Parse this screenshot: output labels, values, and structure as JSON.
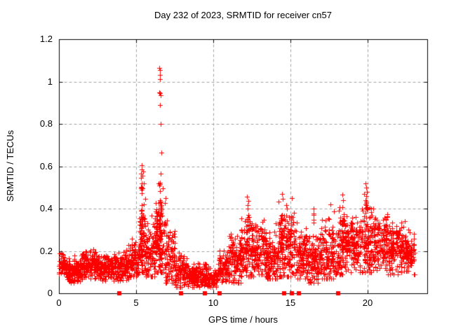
{
  "chart_data": {
    "type": "scatter",
    "title": "Day 232 of 2023, SRMTID for receiver cn57",
    "xlabel": "GPS time / hours",
    "ylabel": "SRMTID / TECUs",
    "xlim": [
      0,
      23.86
    ],
    "ylim": [
      0,
      1.2
    ],
    "xticks": [
      0,
      5,
      10,
      15,
      20
    ],
    "xtick_labels": [
      "0",
      "5",
      "10",
      "15",
      "20"
    ],
    "yticks": [
      0,
      0.2,
      0.4,
      0.6,
      0.8,
      1,
      1.2
    ],
    "ytick_labels": [
      "0",
      "0.2",
      "0.4",
      "0.6",
      "0.8",
      "1",
      "1.2"
    ],
    "grid": true,
    "grid_color": "#a0a0a0",
    "axis_color": "#000000",
    "marker": {
      "shape": "plus",
      "color": "#ff0000",
      "size": 7
    },
    "flag_marker": {
      "shape": "square",
      "color": "#ff0000",
      "size": 6
    },
    "series_name": "SRMTID",
    "band_profile": [
      {
        "t0": 0.0,
        "t1": 0.5,
        "n": 75,
        "ymin": 0.08,
        "ymax": 0.2,
        "c": 0.13
      },
      {
        "t0": 0.5,
        "t1": 1.5,
        "n": 135,
        "ymin": 0.05,
        "ymax": 0.18,
        "c": 0.11
      },
      {
        "t0": 1.5,
        "t1": 2.5,
        "n": 135,
        "ymin": 0.07,
        "ymax": 0.21,
        "c": 0.13
      },
      {
        "t0": 2.5,
        "t1": 3.5,
        "n": 135,
        "ymin": 0.06,
        "ymax": 0.19,
        "c": 0.12
      },
      {
        "t0": 3.5,
        "t1": 4.5,
        "n": 135,
        "ymin": 0.06,
        "ymax": 0.22,
        "c": 0.12
      },
      {
        "t0": 4.5,
        "t1": 5.2,
        "n": 100,
        "ymin": 0.08,
        "ymax": 0.26,
        "c": 0.15
      },
      {
        "t0": 5.2,
        "t1": 5.6,
        "n": 70,
        "ymin": 0.1,
        "ymax": 0.5,
        "c": 0.22
      },
      {
        "t0": 5.6,
        "t1": 6.2,
        "n": 85,
        "ymin": 0.08,
        "ymax": 0.42,
        "c": 0.18
      },
      {
        "t0": 6.2,
        "t1": 6.9,
        "n": 115,
        "ymin": 0.1,
        "ymax": 0.55,
        "c": 0.25
      },
      {
        "t0": 6.9,
        "t1": 7.5,
        "n": 85,
        "ymin": 0.05,
        "ymax": 0.38,
        "c": 0.17
      },
      {
        "t0": 7.5,
        "t1": 8.3,
        "n": 105,
        "ymin": 0.03,
        "ymax": 0.2,
        "c": 0.1
      },
      {
        "t0": 8.3,
        "t1": 9.7,
        "n": 170,
        "ymin": 0.03,
        "ymax": 0.15,
        "c": 0.08
      },
      {
        "t0": 9.7,
        "t1": 10.3,
        "n": 60,
        "ymin": 0.03,
        "ymax": 0.13,
        "c": 0.07
      },
      {
        "t0": 10.3,
        "t1": 11.0,
        "n": 95,
        "ymin": 0.05,
        "ymax": 0.22,
        "c": 0.12
      },
      {
        "t0": 11.0,
        "t1": 11.8,
        "n": 115,
        "ymin": 0.05,
        "ymax": 0.32,
        "c": 0.15
      },
      {
        "t0": 11.8,
        "t1": 12.6,
        "n": 115,
        "ymin": 0.08,
        "ymax": 0.42,
        "c": 0.2
      },
      {
        "t0": 12.6,
        "t1": 13.4,
        "n": 115,
        "ymin": 0.09,
        "ymax": 0.38,
        "c": 0.21
      },
      {
        "t0": 13.4,
        "t1": 14.2,
        "n": 115,
        "ymin": 0.07,
        "ymax": 0.33,
        "c": 0.17
      },
      {
        "t0": 14.2,
        "t1": 15.3,
        "n": 160,
        "ymin": 0.08,
        "ymax": 0.44,
        "c": 0.21
      },
      {
        "t0": 15.3,
        "t1": 16.2,
        "n": 125,
        "ymin": 0.07,
        "ymax": 0.34,
        "c": 0.18
      },
      {
        "t0": 16.2,
        "t1": 17.0,
        "n": 115,
        "ymin": 0.05,
        "ymax": 0.3,
        "c": 0.16
      },
      {
        "t0": 17.0,
        "t1": 17.8,
        "n": 115,
        "ymin": 0.07,
        "ymax": 0.4,
        "c": 0.19
      },
      {
        "t0": 17.8,
        "t1": 18.6,
        "n": 115,
        "ymin": 0.09,
        "ymax": 0.44,
        "c": 0.21
      },
      {
        "t0": 18.6,
        "t1": 19.5,
        "n": 125,
        "ymin": 0.1,
        "ymax": 0.37,
        "c": 0.22
      },
      {
        "t0": 19.5,
        "t1": 20.3,
        "n": 115,
        "ymin": 0.1,
        "ymax": 0.48,
        "c": 0.24
      },
      {
        "t0": 20.3,
        "t1": 21.3,
        "n": 145,
        "ymin": 0.11,
        "ymax": 0.4,
        "c": 0.24
      },
      {
        "t0": 21.3,
        "t1": 22.4,
        "n": 155,
        "ymin": 0.09,
        "ymax": 0.35,
        "c": 0.21
      },
      {
        "t0": 22.4,
        "t1": 23.05,
        "n": 95,
        "ymin": 0.09,
        "ymax": 0.3,
        "c": 0.18
      }
    ],
    "spike_columns": [
      {
        "x": 5.35,
        "jx": 0.06,
        "n": 25,
        "y0": 0.12,
        "y1": 0.52
      },
      {
        "x": 6.55,
        "jx": 0.08,
        "n": 35,
        "y0": 0.12,
        "y1": 0.56
      },
      {
        "x": 6.3,
        "jx": 0.05,
        "n": 15,
        "y0": 0.1,
        "y1": 0.4
      },
      {
        "x": 12.2,
        "jx": 0.05,
        "n": 12,
        "y0": 0.15,
        "y1": 0.42
      },
      {
        "x": 14.45,
        "jx": 0.05,
        "n": 12,
        "y0": 0.15,
        "y1": 0.43
      },
      {
        "x": 16.5,
        "jx": 0.04,
        "n": 8,
        "y0": 0.15,
        "y1": 0.38
      },
      {
        "x": 18.4,
        "jx": 0.05,
        "n": 10,
        "y0": 0.15,
        "y1": 0.42
      },
      {
        "x": 19.9,
        "jx": 0.06,
        "n": 14,
        "y0": 0.18,
        "y1": 0.45
      }
    ],
    "peak_points": [
      [
        5.32,
        0.545
      ],
      [
        5.32,
        0.565
      ],
      [
        5.35,
        0.585
      ],
      [
        5.35,
        0.605
      ],
      [
        5.42,
        0.555
      ],
      [
        5.45,
        0.575
      ],
      [
        5.5,
        0.52
      ],
      [
        6.52,
        1.065
      ],
      [
        6.55,
        1.055
      ],
      [
        6.55,
        1.03
      ],
      [
        6.55,
        1.01
      ],
      [
        6.5,
        0.95
      ],
      [
        6.55,
        0.945
      ],
      [
        6.6,
        0.935
      ],
      [
        6.55,
        0.89
      ],
      [
        6.58,
        0.8
      ],
      [
        6.62,
        0.665
      ],
      [
        6.6,
        0.565
      ],
      [
        6.45,
        0.52
      ],
      [
        12.2,
        0.455
      ],
      [
        12.25,
        0.435
      ],
      [
        14.45,
        0.47
      ],
      [
        14.5,
        0.445
      ],
      [
        15.1,
        0.45
      ],
      [
        16.5,
        0.4
      ],
      [
        17.6,
        0.42
      ],
      [
        18.35,
        0.465
      ],
      [
        18.4,
        0.44
      ],
      [
        19.85,
        0.52
      ],
      [
        19.9,
        0.5
      ],
      [
        19.95,
        0.48
      ],
      [
        19.9,
        0.46
      ]
    ],
    "zero_flag_hours": [
      3.9,
      7.9,
      9.45,
      10.4,
      14.6,
      15.1,
      15.55,
      18.1
    ]
  }
}
